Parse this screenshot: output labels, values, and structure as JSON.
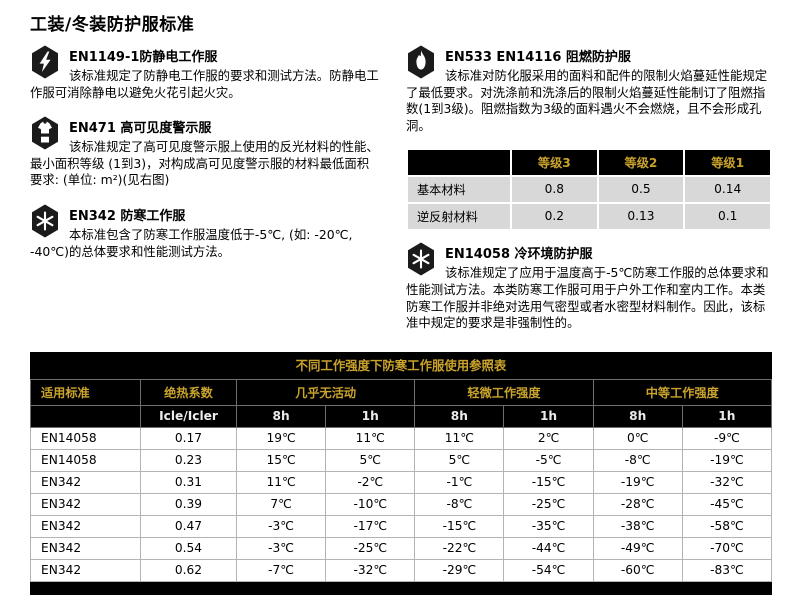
{
  "page_title": "工装/冬装防护服标准",
  "colors": {
    "gold": "#C9A22C",
    "header_black": "#000000",
    "light_gray_row": "#D8D8D8",
    "table_border": "#B3B3B3"
  },
  "standards": [
    {
      "icon": "lightning-shield",
      "code": "EN1149-1防静电工作服",
      "desc": "该标准规定了防静电工作服的要求和测试方法。防静电工作服可消除静电以避免火花引起火灾。"
    },
    {
      "icon": "hi-vis-vest-shield",
      "code": "EN471 高可见度警示服",
      "desc": "该标准规定了高可见度警示服上使用的反光材料的性能、最小面积等级 (1到3)，对构成高可见度警示服的材料最低面积要求: (单位: m²)(见右图)"
    },
    {
      "icon": "snowflake-shield",
      "code": "EN342 防寒工作服",
      "desc": "本标准包含了防寒工作服温度低于-5℃, (如: -20℃, -40℃)的总体要求和性能测试方法。"
    },
    {
      "icon": "flame-shield",
      "code": "EN533 EN14116 阻燃防护服",
      "desc": "该标准对防化服采用的面料和配件的限制火焰蔓延性能规定了最低要求。对洗涤前和洗涤后的限制火焰蔓延性能制订了阻燃指数(1到3级)。阻燃指数为3级的面料遇火不会燃烧，且不会形成孔洞。"
    },
    {
      "icon": "snowflake-shield",
      "code": "EN14058 冷环境防护服",
      "desc": "该标准规定了应用于温度高于-5℃防寒工作服的总体要求和性能测试方法。本类防寒工作服可用于户外工作和室内工作。本类防寒工作服并非绝对选用气密型或者水密型材料制作。因此，该标准中规定的要求是非强制性的。"
    }
  ],
  "grade_table": {
    "headers": [
      "",
      "等级3",
      "等级2",
      "等级1"
    ],
    "rows": [
      [
        "基本材料",
        "0.8",
        "0.5",
        "0.14"
      ],
      [
        "逆反射材料",
        "0.2",
        "0.13",
        "0.1"
      ]
    ]
  },
  "reference_table": {
    "title": "不同工作强度下防寒工作服使用参照表",
    "group_headers": [
      "适用标准",
      "绝热系数",
      "几乎无活动",
      "轻微工作强度",
      "中等工作强度"
    ],
    "sub_headers": [
      "",
      "Icle/Icler",
      "8h",
      "1h",
      "8h",
      "1h",
      "8h",
      "1h"
    ],
    "rows": [
      [
        "EN14058",
        "0.17",
        "19℃",
        "11℃",
        "11℃",
        "2℃",
        "0℃",
        "-9℃"
      ],
      [
        "EN14058",
        "0.23",
        "15℃",
        "5℃",
        "5℃",
        "-5℃",
        "-8℃",
        "-19℃"
      ],
      [
        "EN342",
        "0.31",
        "11℃",
        "-2℃",
        "-1℃",
        "-15℃",
        "-19℃",
        "-32℃"
      ],
      [
        "EN342",
        "0.39",
        "7℃",
        "-10℃",
        "-8℃",
        "-25℃",
        "-28℃",
        "-45℃"
      ],
      [
        "EN342",
        "0.47",
        "-3℃",
        "-17℃",
        "-15℃",
        "-35℃",
        "-38℃",
        "-58℃"
      ],
      [
        "EN342",
        "0.54",
        "-3℃",
        "-25℃",
        "-22℃",
        "-44℃",
        "-49℃",
        "-70℃"
      ],
      [
        "EN342",
        "0.62",
        "-7℃",
        "-32℃",
        "-29℃",
        "-54℃",
        "-60℃",
        "-83℃"
      ]
    ]
  }
}
